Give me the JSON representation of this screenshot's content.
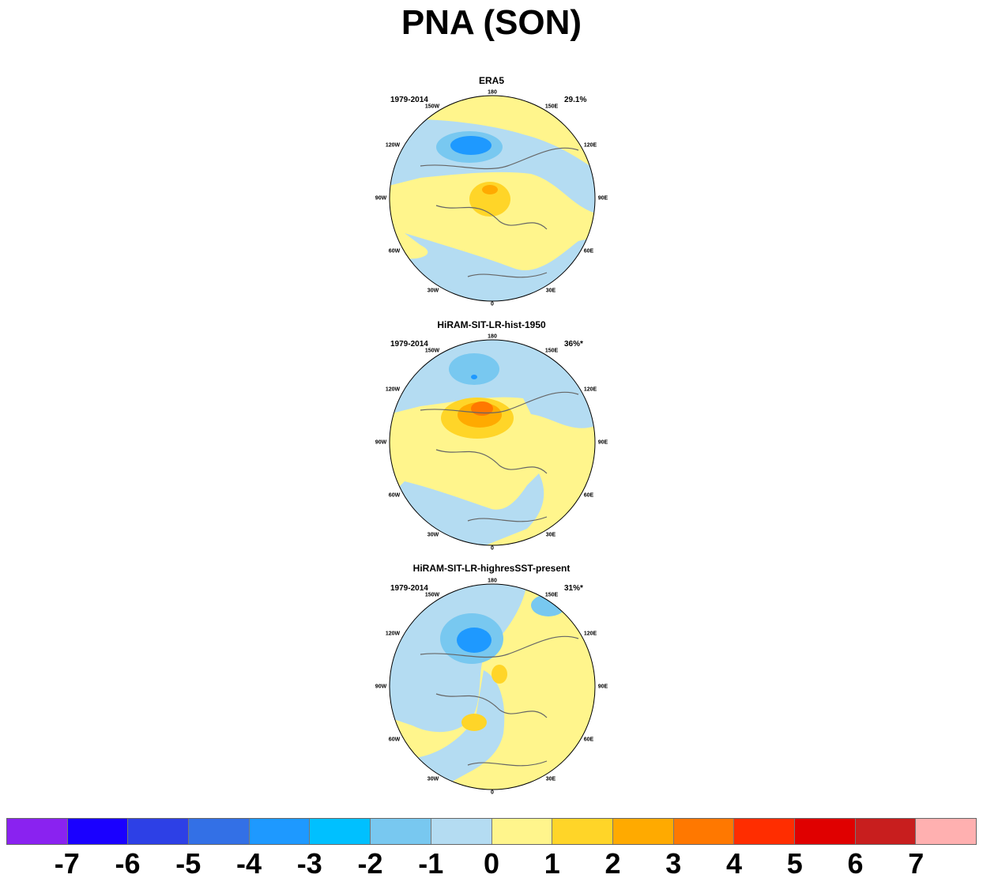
{
  "title": "PNA (SON)",
  "panels": [
    {
      "name": "ERA5",
      "period": "1979-2014",
      "percent": "29.1%"
    },
    {
      "name": "HiRAM-SIT-LR-hist-1950",
      "period": "1979-2014",
      "percent": "36%*"
    },
    {
      "name": "HiRAM-SIT-LR-highresSST-present",
      "period": "1979-2014",
      "percent": "31%*"
    }
  ],
  "longitude_labels": [
    "180",
    "150E",
    "120E",
    "90E",
    "60E",
    "30E",
    "0",
    "30W",
    "60W",
    "90W",
    "120W",
    "150W"
  ],
  "colorbar": {
    "colors": [
      "#8a22f0",
      "#1a00ff",
      "#2d40e6",
      "#3370e6",
      "#1e99ff",
      "#00c0ff",
      "#78c8f0",
      "#b4dcf2",
      "#fff58c",
      "#ffd528",
      "#ffaa00",
      "#ff7800",
      "#ff2d00",
      "#e00000",
      "#c81e1e",
      "#ffb0b0"
    ],
    "labels": [
      "-7",
      "-6",
      "-5",
      "-4",
      "-3",
      "-2",
      "-1",
      "0",
      "1",
      "2",
      "3",
      "4",
      "5",
      "6",
      "7"
    ]
  }
}
